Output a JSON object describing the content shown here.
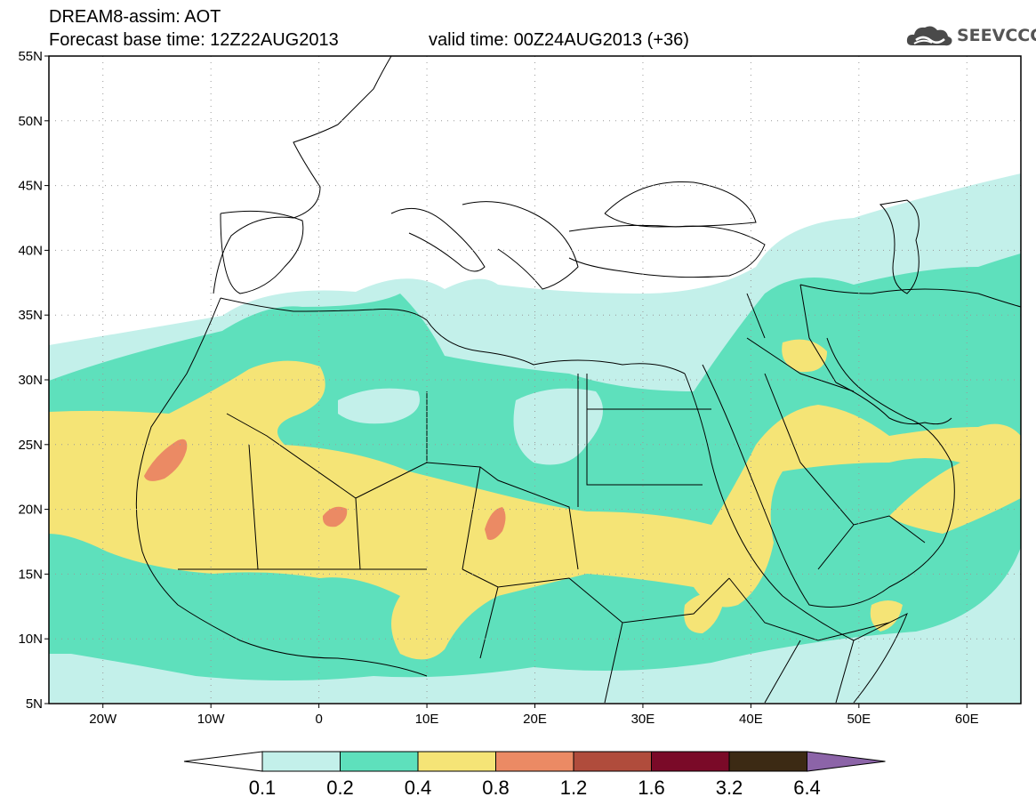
{
  "header": {
    "title_line1": "DREAM8-assim: AOT",
    "title_line2": "Forecast base time: 12Z22AUG2013",
    "valid_time": "valid time: 00Z24AUG2013 (+36)"
  },
  "logo": {
    "text": "SEEVCCC",
    "icon": "cloud-logo-icon"
  },
  "map": {
    "lon_range": [
      -25,
      65
    ],
    "lat_range": [
      5,
      55
    ],
    "lat_ticks": [
      {
        "value": 55,
        "label": "55N"
      },
      {
        "value": 50,
        "label": "50N"
      },
      {
        "value": 45,
        "label": "45N"
      },
      {
        "value": 40,
        "label": "40N"
      },
      {
        "value": 35,
        "label": "35N"
      },
      {
        "value": 30,
        "label": "30N"
      },
      {
        "value": 25,
        "label": "25N"
      },
      {
        "value": 20,
        "label": "20N"
      },
      {
        "value": 15,
        "label": "15N"
      },
      {
        "value": 10,
        "label": "10N"
      },
      {
        "value": 5,
        "label": "5N"
      }
    ],
    "lon_ticks": [
      {
        "value": -20,
        "label": "20W"
      },
      {
        "value": -10,
        "label": "10W"
      },
      {
        "value": 0,
        "label": "0"
      },
      {
        "value": 10,
        "label": "10E"
      },
      {
        "value": 20,
        "label": "20E"
      },
      {
        "value": 30,
        "label": "30E"
      },
      {
        "value": 40,
        "label": "40E"
      },
      {
        "value": 50,
        "label": "50E"
      },
      {
        "value": 60,
        "label": "60E"
      }
    ],
    "grid": "dotted"
  },
  "colorbar": {
    "labels": [
      "0.1",
      "0.2",
      "0.4",
      "0.8",
      "1.2",
      "1.6",
      "3.2",
      "6.4"
    ],
    "colors": [
      "#ffffff",
      "#c3f0ea",
      "#5ee0bc",
      "#f5e476",
      "#eb8a64",
      "#b04c3c",
      "#7a0a28",
      "#3c2a14",
      "#8c64a8"
    ]
  }
}
